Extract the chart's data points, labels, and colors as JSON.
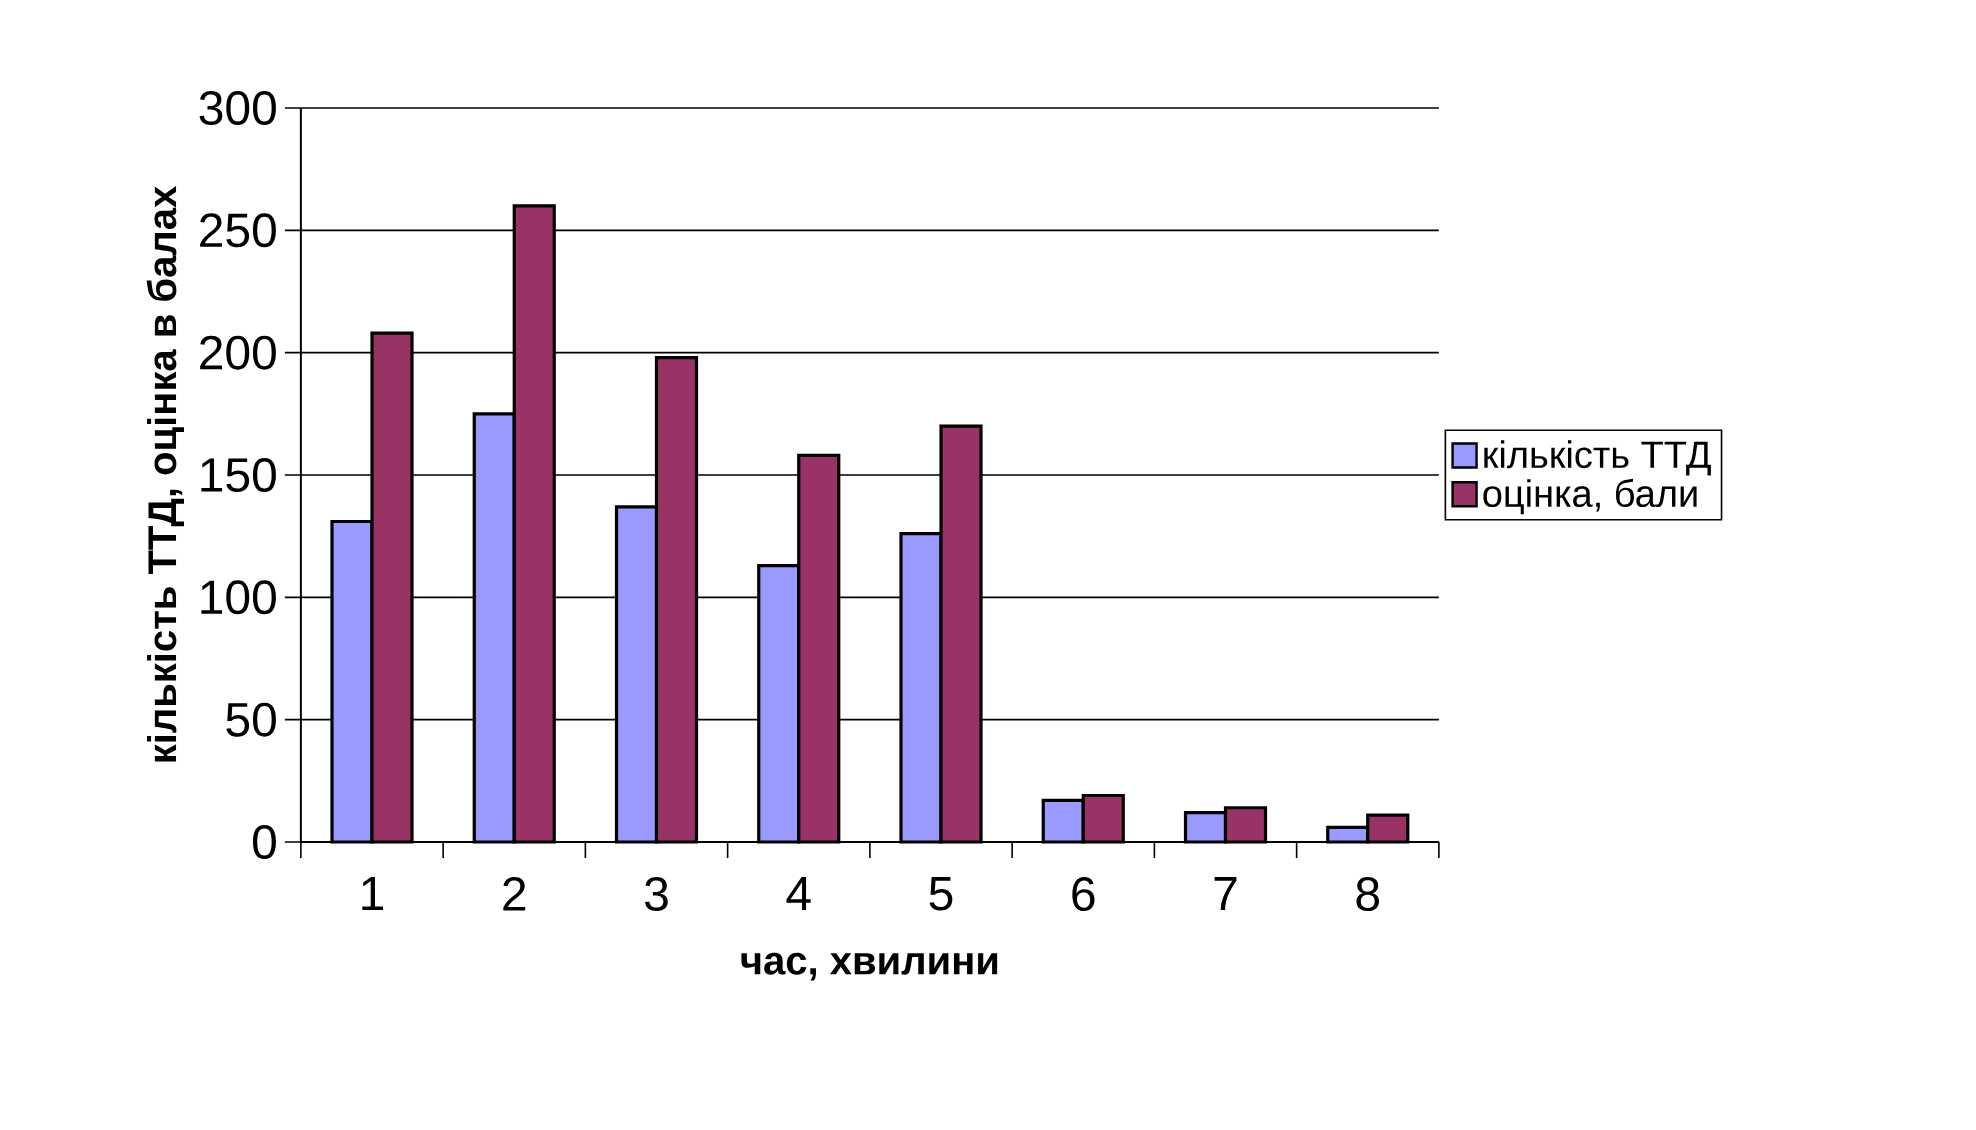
{
  "chart_data": {
    "type": "bar",
    "xlabel": "час, хвилини",
    "ylabel": "кількість ТТД, оцінка в балах",
    "categories": [
      "1",
      "2",
      "3",
      "4",
      "5",
      "6",
      "7",
      "8"
    ],
    "series": [
      {
        "name": "кількість ТТД",
        "color": "#9999ff",
        "values": [
          131,
          175,
          137,
          113,
          126,
          17,
          12,
          6
        ]
      },
      {
        "name": "оцінка, бали",
        "color": "#993366",
        "values": [
          208,
          260,
          198,
          158,
          170,
          19,
          14,
          11
        ]
      }
    ],
    "ylim": [
      0,
      300
    ],
    "yticks": [
      0,
      50,
      100,
      150,
      200,
      250,
      300
    ],
    "grid": "y",
    "legend": "right"
  }
}
